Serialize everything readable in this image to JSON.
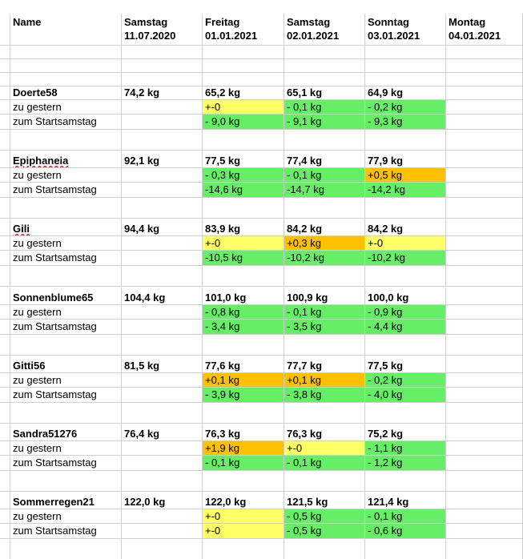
{
  "header": {
    "name": "Name",
    "days": [
      {
        "weekday": "Samstag",
        "date": "11.07.2020"
      },
      {
        "weekday": "Freitag",
        "date": "01.01.2021"
      },
      {
        "weekday": "Samstag",
        "date": "02.01.2021"
      },
      {
        "weekday": "Sonntag",
        "date": "03.01.2021"
      },
      {
        "weekday": "Montag",
        "date": "04.01.2021"
      }
    ]
  },
  "row_labels": {
    "yesterday": "zu gestern",
    "start": "zum Startsamstag"
  },
  "persons": [
    {
      "name": "Doerte58",
      "start": "74,2 kg",
      "weights": [
        "65,2 kg",
        "65,1 kg",
        "64,9 kg"
      ],
      "yesterday": [
        {
          "v": "+-0",
          "c": "yellow"
        },
        {
          "v": "- 0,1 kg",
          "c": "green"
        },
        {
          "v": "- 0,2 kg",
          "c": "green"
        }
      ],
      "start_diff": [
        {
          "v": "- 9,0 kg",
          "c": "green"
        },
        {
          "v": "- 9,1 kg",
          "c": "green"
        },
        {
          "v": "- 9,3 kg",
          "c": "green"
        }
      ]
    },
    {
      "name": "Epiphaneia",
      "start": "92,1 kg",
      "weights": [
        "77,5 kg",
        "77,4 kg",
        "77,9 kg"
      ],
      "yesterday": [
        {
          "v": "- 0,3 kg",
          "c": "green"
        },
        {
          "v": "- 0,1 kg",
          "c": "green"
        },
        {
          "v": "+0,5 kg",
          "c": "orange"
        }
      ],
      "start_diff": [
        {
          "v": "-14,6 kg",
          "c": "green"
        },
        {
          "v": "-14,7 kg",
          "c": "green"
        },
        {
          "v": "-14,2 kg",
          "c": "green"
        }
      ]
    },
    {
      "name": "Gili",
      "start": "94,4 kg",
      "weights": [
        "83,9 kg",
        "84,2 kg",
        "84,2 kg"
      ],
      "yesterday": [
        {
          "v": "+-0",
          "c": "yellow"
        },
        {
          "v": "+0,3 kg",
          "c": "orange"
        },
        {
          "v": "+-0",
          "c": "yellow"
        }
      ],
      "start_diff": [
        {
          "v": "-10,5 kg",
          "c": "green"
        },
        {
          "v": "-10,2 kg",
          "c": "green"
        },
        {
          "v": "-10,2 kg",
          "c": "green"
        }
      ]
    },
    {
      "name": "Sonnenblume65",
      "start": "104,4 kg",
      "weights": [
        "101,0 kg",
        "100,9 kg",
        "100,0 kg"
      ],
      "yesterday": [
        {
          "v": "- 0,8 kg",
          "c": "green"
        },
        {
          "v": "- 0,1 kg",
          "c": "green"
        },
        {
          "v": "- 0,9 kg",
          "c": "green"
        }
      ],
      "start_diff": [
        {
          "v": "- 3,4 kg",
          "c": "green"
        },
        {
          "v": "- 3,5 kg",
          "c": "green"
        },
        {
          "v": "- 4,4 kg",
          "c": "green"
        }
      ]
    },
    {
      "name": "Gitti56",
      "start": "81,5 kg",
      "weights": [
        "77,6 kg",
        "77,7 kg",
        "77,5 kg"
      ],
      "yesterday": [
        {
          "v": "+0,1 kg",
          "c": "orange"
        },
        {
          "v": "+0,1 kg",
          "c": "orange"
        },
        {
          "v": "- 0,2 kg",
          "c": "green"
        }
      ],
      "start_diff": [
        {
          "v": "- 3,9 kg",
          "c": "green"
        },
        {
          "v": "- 3,8 kg",
          "c": "green"
        },
        {
          "v": "- 4,0 kg",
          "c": "green"
        }
      ]
    },
    {
      "name": "Sandra51276",
      "start": "76,4 kg",
      "weights": [
        "76,3 kg",
        "76,3 kg",
        "75,2 kg"
      ],
      "yesterday": [
        {
          "v": "+1,9 kg",
          "c": "orange"
        },
        {
          "v": "+-0",
          "c": "yellow"
        },
        {
          "v": "- 1,1 kg",
          "c": "green"
        }
      ],
      "start_diff": [
        {
          "v": "- 0,1 kg",
          "c": "green"
        },
        {
          "v": "- 0,1 kg",
          "c": "green"
        },
        {
          "v": "- 1,2 kg",
          "c": "green"
        }
      ]
    },
    {
      "name": "Sommerregen21",
      "start": "122,0 kg",
      "weights": [
        "122,0 kg",
        "121,5 kg",
        "121,4 kg"
      ],
      "yesterday": [
        {
          "v": "+-0",
          "c": "yellow"
        },
        {
          "v": "- 0,5 kg",
          "c": "green"
        },
        {
          "v": "- 0,1 kg",
          "c": "green"
        }
      ],
      "start_diff": [
        {
          "v": "+-0",
          "c": "yellow"
        },
        {
          "v": "- 0,5 kg",
          "c": "green"
        },
        {
          "v": "- 0,6 kg",
          "c": "green"
        }
      ]
    }
  ],
  "colors": {
    "yellow": "#ffff66",
    "orange": "#ffc000",
    "green": "#66ee66"
  }
}
